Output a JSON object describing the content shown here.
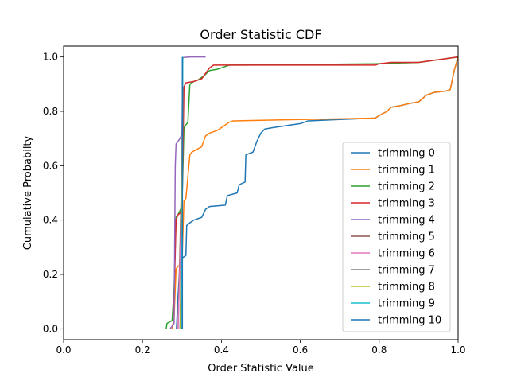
{
  "chart_data": {
    "type": "line",
    "title": "Order Statistic CDF",
    "xlabel": "Order Statistic Value",
    "ylabel": "Cumulative Probabilty",
    "xlim": [
      0.0,
      1.0
    ],
    "ylim": [
      -0.04,
      1.04
    ],
    "xticks": [
      0.0,
      0.2,
      0.4,
      0.6,
      0.8,
      1.0
    ],
    "xtick_labels": [
      "0.0",
      "0.2",
      "0.4",
      "0.6",
      "0.8",
      "1.0"
    ],
    "yticks": [
      0.0,
      0.2,
      0.4,
      0.6,
      0.8,
      1.0
    ],
    "ytick_labels": [
      "0.0",
      "0.2",
      "0.4",
      "0.6",
      "0.8",
      "1.0"
    ],
    "grid": false,
    "legend": "lower-right",
    "series": [
      {
        "name": "trimming 0",
        "color": "#1f77b4",
        "points": [
          [
            0.286,
            0.0
          ],
          [
            0.29,
            0.12
          ],
          [
            0.295,
            0.24
          ],
          [
            0.3,
            0.26
          ],
          [
            0.31,
            0.27
          ],
          [
            0.312,
            0.38
          ],
          [
            0.32,
            0.39
          ],
          [
            0.33,
            0.4
          ],
          [
            0.35,
            0.41
          ],
          [
            0.36,
            0.44
          ],
          [
            0.37,
            0.45
          ],
          [
            0.41,
            0.455
          ],
          [
            0.415,
            0.49
          ],
          [
            0.44,
            0.5
          ],
          [
            0.445,
            0.53
          ],
          [
            0.46,
            0.54
          ],
          [
            0.462,
            0.64
          ],
          [
            0.48,
            0.65
          ],
          [
            0.49,
            0.69
          ],
          [
            0.5,
            0.72
          ],
          [
            0.51,
            0.735
          ],
          [
            0.53,
            0.74
          ],
          [
            0.6,
            0.755
          ],
          [
            0.62,
            0.765
          ],
          [
            0.7,
            0.77
          ],
          [
            0.79,
            0.775
          ],
          [
            0.8,
            0.785
          ],
          [
            0.82,
            0.8
          ],
          [
            0.83,
            0.815
          ],
          [
            0.85,
            0.82
          ],
          [
            0.88,
            0.83
          ],
          [
            0.9,
            0.835
          ],
          [
            0.92,
            0.86
          ],
          [
            0.94,
            0.87
          ],
          [
            0.97,
            0.875
          ],
          [
            0.98,
            0.88
          ],
          [
            0.99,
            0.95
          ],
          [
            1.0,
            1.0
          ]
        ]
      },
      {
        "name": "trimming 1",
        "color": "#ff7f0e",
        "points": [
          [
            0.275,
            0.0
          ],
          [
            0.28,
            0.04
          ],
          [
            0.285,
            0.22
          ],
          [
            0.29,
            0.23
          ],
          [
            0.3,
            0.24
          ],
          [
            0.305,
            0.47
          ],
          [
            0.31,
            0.48
          ],
          [
            0.32,
            0.64
          ],
          [
            0.325,
            0.65
          ],
          [
            0.35,
            0.67
          ],
          [
            0.36,
            0.71
          ],
          [
            0.37,
            0.72
          ],
          [
            0.39,
            0.73
          ],
          [
            0.42,
            0.76
          ],
          [
            0.43,
            0.765
          ],
          [
            0.6,
            0.77
          ],
          [
            0.79,
            0.775
          ],
          [
            0.8,
            0.785
          ],
          [
            0.82,
            0.8
          ],
          [
            0.83,
            0.815
          ],
          [
            0.85,
            0.82
          ],
          [
            0.88,
            0.83
          ],
          [
            0.9,
            0.835
          ],
          [
            0.92,
            0.86
          ],
          [
            0.94,
            0.87
          ],
          [
            0.97,
            0.875
          ],
          [
            0.98,
            0.88
          ],
          [
            0.99,
            0.95
          ],
          [
            1.0,
            1.0
          ]
        ]
      },
      {
        "name": "trimming 2",
        "color": "#2ca02c",
        "points": [
          [
            0.26,
            0.0
          ],
          [
            0.262,
            0.02
          ],
          [
            0.275,
            0.03
          ],
          [
            0.28,
            0.15
          ],
          [
            0.285,
            0.41
          ],
          [
            0.29,
            0.42
          ],
          [
            0.3,
            0.45
          ],
          [
            0.305,
            0.74
          ],
          [
            0.31,
            0.75
          ],
          [
            0.315,
            0.76
          ],
          [
            0.32,
            0.9
          ],
          [
            0.33,
            0.91
          ],
          [
            0.34,
            0.915
          ],
          [
            0.355,
            0.93
          ],
          [
            0.37,
            0.95
          ],
          [
            0.39,
            0.955
          ],
          [
            0.42,
            0.97
          ],
          [
            0.45,
            0.97
          ],
          [
            0.79,
            0.975
          ],
          [
            0.9,
            0.98
          ],
          [
            0.95,
            0.99
          ],
          [
            1.0,
            1.0
          ]
        ]
      },
      {
        "name": "trimming 3",
        "color": "#d62728",
        "points": [
          [
            0.278,
            0.05
          ],
          [
            0.28,
            0.11
          ],
          [
            0.285,
            0.4
          ],
          [
            0.29,
            0.42
          ],
          [
            0.3,
            0.43
          ],
          [
            0.305,
            0.89
          ],
          [
            0.31,
            0.905
          ],
          [
            0.33,
            0.91
          ],
          [
            0.35,
            0.92
          ],
          [
            0.37,
            0.96
          ],
          [
            0.38,
            0.97
          ],
          [
            0.5,
            0.97
          ],
          [
            0.79,
            0.97
          ],
          [
            0.8,
            0.975
          ],
          [
            0.83,
            0.98
          ],
          [
            0.9,
            0.98
          ],
          [
            0.95,
            0.99
          ],
          [
            1.0,
            1.0
          ]
        ]
      },
      {
        "name": "trimming 4",
        "color": "#9467bd",
        "points": [
          [
            0.27,
            0.0
          ],
          [
            0.275,
            0.01
          ],
          [
            0.28,
            0.02
          ],
          [
            0.283,
            0.6
          ],
          [
            0.285,
            0.68
          ],
          [
            0.295,
            0.7
          ],
          [
            0.3,
            0.72
          ],
          [
            0.302,
            0.998
          ],
          [
            0.32,
            1.0
          ],
          [
            0.36,
            1.0
          ]
        ]
      },
      {
        "name": "trimming 5",
        "color": "#8c564b",
        "points": [
          [
            0.29,
            0.0
          ],
          [
            0.295,
            0.3
          ],
          [
            0.3,
            0.6
          ],
          [
            0.302,
            1.0
          ]
        ]
      },
      {
        "name": "trimming 6",
        "color": "#e377c2",
        "points": [
          [
            0.29,
            0.0
          ],
          [
            0.3,
            0.5
          ],
          [
            0.302,
            1.0
          ]
        ]
      },
      {
        "name": "trimming 7",
        "color": "#7f7f7f",
        "points": [
          [
            0.295,
            0.0
          ],
          [
            0.3,
            0.5
          ],
          [
            0.302,
            1.0
          ]
        ]
      },
      {
        "name": "trimming 8",
        "color": "#bcbd22",
        "points": [
          [
            0.296,
            0.0
          ],
          [
            0.3,
            0.5
          ],
          [
            0.302,
            1.0
          ]
        ]
      },
      {
        "name": "trimming 9",
        "color": "#17becf",
        "points": [
          [
            0.298,
            0.0
          ],
          [
            0.301,
            0.5
          ],
          [
            0.302,
            1.0
          ]
        ]
      },
      {
        "name": "trimming 10",
        "color": "#1f77b4",
        "points": [
          [
            0.301,
            0.0
          ],
          [
            0.301,
            1.0
          ]
        ]
      }
    ]
  }
}
